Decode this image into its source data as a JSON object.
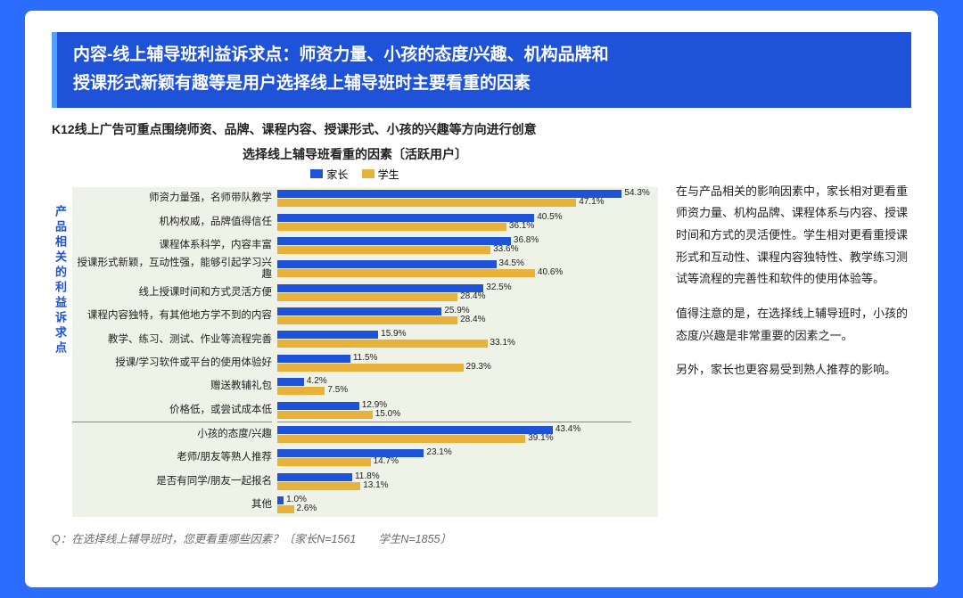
{
  "title_line1": "内容-线上辅导班利益诉求点：师资力量、小孩的态度/兴趣、机构品牌和",
  "title_line2": "授课形式新颖有趣等是用户选择线上辅导班时主要看重的因素",
  "subtitle": "K12线上广告可重点围绕师资、品牌、课程内容、授课形式、小孩的兴趣等方向进行创意",
  "chart": {
    "title": "选择线上辅导班看重的因素〔活跃用户〕",
    "y_axis_label": "产品相关的利益诉求点",
    "legend": [
      {
        "label": "家长",
        "color": "#1e52d9"
      },
      {
        "label": "学生",
        "color": "#e8b23a"
      }
    ],
    "background_color": "#eef2e7",
    "max_value": 60,
    "categories": [
      {
        "label": "师资力量强，名师带队教学",
        "parent": 54.3,
        "student": 47.1,
        "group": 0
      },
      {
        "label": "机构权威，品牌值得信任",
        "parent": 40.5,
        "student": 36.1,
        "group": 0
      },
      {
        "label": "课程体系科学，内容丰富",
        "parent": 36.8,
        "student": 33.6,
        "group": 0
      },
      {
        "label": "授课形式新颖，互动性强，能够引起学习兴趣",
        "parent": 34.5,
        "student": 40.6,
        "group": 0
      },
      {
        "label": "线上授课时间和方式灵活方便",
        "parent": 32.5,
        "student": 28.4,
        "group": 0
      },
      {
        "label": "课程内容独特，有其他地方学不到的内容",
        "parent": 25.9,
        "student": 28.4,
        "group": 0
      },
      {
        "label": "教学、练习、测试、作业等流程完善",
        "parent": 15.9,
        "student": 33.1,
        "group": 0
      },
      {
        "label": "授课/学习软件或平台的使用体验好",
        "parent": 11.5,
        "student": 29.3,
        "group": 0
      },
      {
        "label": "赠送教辅礼包",
        "parent": 4.2,
        "student": 7.5,
        "group": 0
      },
      {
        "label": "价格低，或尝试成本低",
        "parent": 12.9,
        "student": 15.0,
        "group": 0
      },
      {
        "label": "小孩的态度/兴趣",
        "parent": 43.4,
        "student": 39.1,
        "group": 1
      },
      {
        "label": "老师/朋友等熟人推荐",
        "parent": 23.1,
        "student": 14.7,
        "group": 1
      },
      {
        "label": "是否有同学/朋友一起报名",
        "parent": 11.8,
        "student": 13.1,
        "group": 1
      },
      {
        "label": "其他",
        "parent": 1.0,
        "student": 2.6,
        "group": 1
      }
    ]
  },
  "paragraphs": [
    "在与产品相关的影响因素中，家长相对更看重师资力量、机构品牌、课程体系与内容、授课时间和方式的灵活便性。学生相对更看重授课形式和互动性、课程内容独特性、教学练习测试等流程的完善性和软件的使用体验等。",
    "值得注意的是，在选择线上辅导班时，小孩的态度/兴趣是非常重要的因素之一。",
    "另外，家长也更容易受到熟人推荐的影响。"
  ],
  "footer_question": "Q：在选择线上辅导班时，您更看重哪些因素？〔家长N=1561　　学生N=1855〕"
}
